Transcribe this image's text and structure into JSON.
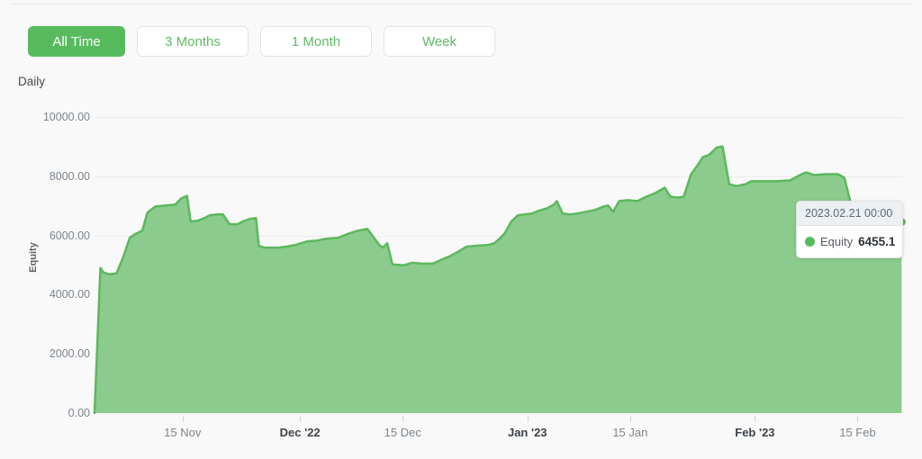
{
  "toolbar": {
    "buttons": [
      {
        "label": "All Time",
        "active": true
      },
      {
        "label": "3 Months",
        "active": false
      },
      {
        "label": "1 Month",
        "active": false
      },
      {
        "label": "Week",
        "active": false
      }
    ]
  },
  "tooltip": {
    "date": "2023.02.21 00:00",
    "series": "Equity",
    "value": "6455.1"
  },
  "colors": {
    "accent": "#57bb5e",
    "line": "#5cb85c",
    "area_fill": "#8ccb8e",
    "grid": "#ececec",
    "tooltip_header_bg": "#edf0f2"
  },
  "chart_data": {
    "type": "area",
    "frequency_label": "Daily",
    "y_axis_title": "Equity",
    "series_name": "Equity",
    "x_base_date": "2022-11-03",
    "x_unit": "days_since_base_date",
    "x_domain_days": [
      0,
      110.2
    ],
    "ylim": [
      0,
      10000
    ],
    "grid": "horizontal-only",
    "legend": "none",
    "yticks": [
      {
        "value": 0,
        "label": "0.00"
      },
      {
        "value": 2000,
        "label": "2000.00"
      },
      {
        "value": 4000,
        "label": "4000.00"
      },
      {
        "value": 6000,
        "label": "6000.00"
      },
      {
        "value": 8000,
        "label": "8000.00"
      },
      {
        "value": 10000,
        "label": "10000.00"
      }
    ],
    "xticks": [
      {
        "day": 12,
        "label": "15 Nov",
        "bold": false
      },
      {
        "day": 28,
        "label": "Dec '22",
        "bold": true
      },
      {
        "day": 42,
        "label": "15 Dec",
        "bold": false
      },
      {
        "day": 59,
        "label": "Jan '23",
        "bold": true
      },
      {
        "day": 73,
        "label": "15 Jan",
        "bold": false
      },
      {
        "day": 90,
        "label": "Feb '23",
        "bold": true
      },
      {
        "day": 104,
        "label": "15 Feb",
        "bold": false
      }
    ],
    "points": [
      [
        0,
        0
      ],
      [
        0.8,
        4900
      ],
      [
        1.2,
        4750
      ],
      [
        2,
        4690
      ],
      [
        3,
        4720
      ],
      [
        3.9,
        5260
      ],
      [
        4.8,
        5920
      ],
      [
        5.5,
        6040
      ],
      [
        6.5,
        6160
      ],
      [
        7.2,
        6770
      ],
      [
        8.3,
        6980
      ],
      [
        9.6,
        7010
      ],
      [
        11,
        7040
      ],
      [
        11.8,
        7250
      ],
      [
        12.6,
        7340
      ],
      [
        13.1,
        6470
      ],
      [
        14.1,
        6500
      ],
      [
        15,
        6590
      ],
      [
        15.7,
        6680
      ],
      [
        16.7,
        6710
      ],
      [
        17.5,
        6710
      ],
      [
        18.4,
        6380
      ],
      [
        19.5,
        6380
      ],
      [
        20.2,
        6470
      ],
      [
        21.2,
        6560
      ],
      [
        22,
        6590
      ],
      [
        22.4,
        5650
      ],
      [
        23.1,
        5590
      ],
      [
        25,
        5590
      ],
      [
        26.1,
        5620
      ],
      [
        27.4,
        5680
      ],
      [
        29,
        5800
      ],
      [
        30.4,
        5830
      ],
      [
        31.6,
        5890
      ],
      [
        33.2,
        5920
      ],
      [
        34.7,
        6070
      ],
      [
        35.9,
        6160
      ],
      [
        37.2,
        6220
      ],
      [
        38.8,
        5680
      ],
      [
        39.3,
        5590
      ],
      [
        39.9,
        5740
      ],
      [
        40.6,
        5020
      ],
      [
        42.1,
        4990
      ],
      [
        43.3,
        5080
      ],
      [
        44.5,
        5050
      ],
      [
        46.1,
        5050
      ],
      [
        47.2,
        5170
      ],
      [
        48.6,
        5320
      ],
      [
        49.7,
        5470
      ],
      [
        50.7,
        5620
      ],
      [
        51.9,
        5650
      ],
      [
        53.7,
        5680
      ],
      [
        54.5,
        5740
      ],
      [
        55.2,
        5890
      ],
      [
        55.9,
        6070
      ],
      [
        56.8,
        6470
      ],
      [
        57.7,
        6680
      ],
      [
        58.6,
        6710
      ],
      [
        59.6,
        6740
      ],
      [
        60.5,
        6830
      ],
      [
        61.7,
        6920
      ],
      [
        62.6,
        7040
      ],
      [
        63,
        7160
      ],
      [
        63.8,
        6740
      ],
      [
        64.8,
        6710
      ],
      [
        65.7,
        6740
      ],
      [
        67,
        6800
      ],
      [
        68.2,
        6860
      ],
      [
        69.4,
        6980
      ],
      [
        70,
        7010
      ],
      [
        70.7,
        6800
      ],
      [
        71.5,
        7160
      ],
      [
        72.7,
        7190
      ],
      [
        74,
        7160
      ],
      [
        75.2,
        7310
      ],
      [
        76.4,
        7430
      ],
      [
        77.7,
        7610
      ],
      [
        78.5,
        7310
      ],
      [
        79.5,
        7280
      ],
      [
        80.3,
        7310
      ],
      [
        81.3,
        8070
      ],
      [
        82.2,
        8370
      ],
      [
        82.9,
        8640
      ],
      [
        83.8,
        8730
      ],
      [
        84.8,
        8970
      ],
      [
        85.6,
        9000
      ],
      [
        86.5,
        7730
      ],
      [
        87.5,
        7670
      ],
      [
        88.7,
        7730
      ],
      [
        89.5,
        7830
      ],
      [
        91.1,
        7830
      ],
      [
        93,
        7830
      ],
      [
        94.8,
        7860
      ],
      [
        96.4,
        8070
      ],
      [
        97,
        8130
      ],
      [
        98.1,
        8040
      ],
      [
        99.7,
        8070
      ],
      [
        101.3,
        8070
      ],
      [
        102.2,
        7950
      ],
      [
        103.2,
        6950
      ],
      [
        105,
        6620
      ],
      [
        108,
        6510
      ],
      [
        110,
        6455.1
      ]
    ]
  }
}
